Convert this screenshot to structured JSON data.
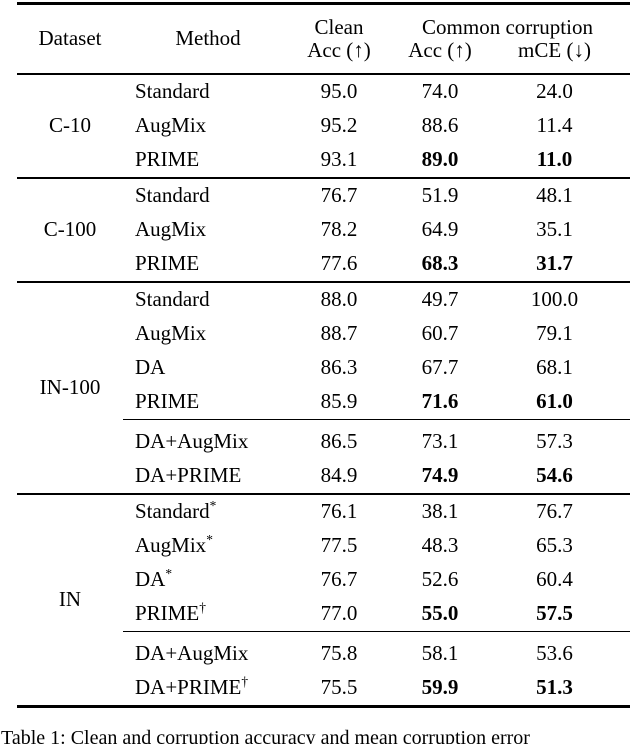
{
  "page": {
    "background": "#ffffff",
    "text_color": "#000000"
  },
  "header": {
    "dataset": "Dataset",
    "method": "Method",
    "clean_line1": "Clean",
    "clean_line2": "Acc (↑)",
    "corruption_group": "Common corruption",
    "corruption_acc": "Acc (↑)",
    "mce": "mCE (↓)"
  },
  "sections": [
    {
      "dataset": "C-10",
      "rows": [
        {
          "method": "Standard",
          "clean": "95.0",
          "cacc": "74.0",
          "mce": "24.0"
        },
        {
          "method": "AugMix",
          "clean": "95.2",
          "cacc": "88.6",
          "mce": "11.4"
        },
        {
          "method": "PRIME",
          "clean": "93.1",
          "cacc": "89.0",
          "mce": "11.0"
        }
      ]
    },
    {
      "dataset": "C-100",
      "rows": [
        {
          "method": "Standard",
          "clean": "76.7",
          "cacc": "51.9",
          "mce": "48.1"
        },
        {
          "method": "AugMix",
          "clean": "78.2",
          "cacc": "64.9",
          "mce": "35.1"
        },
        {
          "method": "PRIME",
          "clean": "77.6",
          "cacc": "68.3",
          "mce": "31.7"
        }
      ]
    },
    {
      "dataset": "IN-100",
      "rows": [
        {
          "method": "Standard",
          "clean": "88.0",
          "cacc": "49.7",
          "mce": "100.0"
        },
        {
          "method": "AugMix",
          "clean": "88.7",
          "cacc": "60.7",
          "mce": "79.1"
        },
        {
          "method": "DA",
          "clean": "86.3",
          "cacc": "67.7",
          "mce": "68.1"
        },
        {
          "method": "PRIME",
          "clean": "85.9",
          "cacc": "71.6",
          "mce": "61.0"
        },
        {
          "method": "DA+AugMix",
          "clean": "86.5",
          "cacc": "73.1",
          "mce": "57.3"
        },
        {
          "method": "DA+PRIME",
          "clean": "84.9",
          "cacc": "74.9",
          "mce": "54.6"
        }
      ]
    },
    {
      "dataset": "IN",
      "rows": [
        {
          "method": "Standard",
          "sup": "*",
          "clean": "76.1",
          "cacc": "38.1",
          "mce": "76.7"
        },
        {
          "method": "AugMix",
          "sup": "*",
          "clean": "77.5",
          "cacc": "48.3",
          "mce": "65.3"
        },
        {
          "method": "DA",
          "sup": "*",
          "clean": "76.7",
          "cacc": "52.6",
          "mce": "60.4"
        },
        {
          "method": "PRIME",
          "sup": "†",
          "clean": "77.0",
          "cacc": "55.0",
          "mce": "57.5"
        },
        {
          "method": "DA+AugMix",
          "clean": "75.8",
          "cacc": "58.1",
          "mce": "53.6"
        },
        {
          "method": "DA+PRIME",
          "sup": "†",
          "clean": "75.5",
          "cacc": "59.9",
          "mce": "51.3"
        }
      ]
    }
  ],
  "caption": "Table 1: Clean and corruption accuracy and mean corruption error"
}
